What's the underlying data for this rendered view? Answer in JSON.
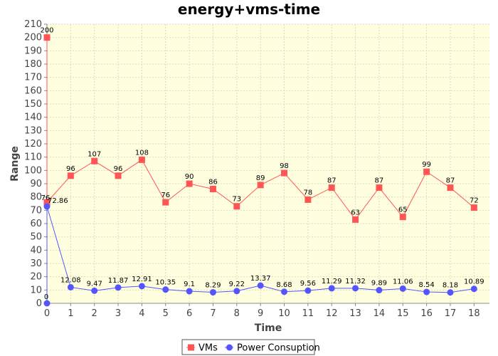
{
  "colors": {
    "plot_background": "#ffffe0",
    "grid": "#d9d9bf",
    "vms": "#ff5555",
    "power": "#5555ff",
    "axis": "#888888"
  },
  "chart_data": {
    "type": "line",
    "title": "energy+vms-time",
    "xlabel": "Time",
    "ylabel": "Range",
    "x": [
      0,
      1,
      2,
      3,
      4,
      5,
      6,
      7,
      8,
      9,
      10,
      11,
      12,
      13,
      14,
      15,
      16,
      17,
      18
    ],
    "xlim": [
      0,
      18.65
    ],
    "ylim": [
      0,
      210
    ],
    "yticks": [
      0,
      10,
      20,
      30,
      40,
      50,
      60,
      70,
      80,
      90,
      100,
      110,
      120,
      130,
      140,
      150,
      160,
      170,
      180,
      190,
      200,
      210
    ],
    "grid": true,
    "legend_position": "bottom-center",
    "series": [
      {
        "name": "VMs",
        "color": "#ff5555",
        "marker": "square",
        "points": [
          {
            "x": 0,
            "y": 200,
            "label": "200"
          },
          {
            "x": 0,
            "y": 76,
            "label": "76"
          },
          {
            "x": 1,
            "y": 96,
            "label": "96"
          },
          {
            "x": 2,
            "y": 107,
            "label": "107"
          },
          {
            "x": 3,
            "y": 96,
            "label": "96"
          },
          {
            "x": 4,
            "y": 108,
            "label": "108"
          },
          {
            "x": 5,
            "y": 76,
            "label": "76"
          },
          {
            "x": 6,
            "y": 90,
            "label": "90"
          },
          {
            "x": 7,
            "y": 86,
            "label": "86"
          },
          {
            "x": 8,
            "y": 73,
            "label": "73"
          },
          {
            "x": 9,
            "y": 89,
            "label": "89"
          },
          {
            "x": 10,
            "y": 98,
            "label": "98"
          },
          {
            "x": 11,
            "y": 78,
            "label": "78"
          },
          {
            "x": 12,
            "y": 87,
            "label": "87"
          },
          {
            "x": 13,
            "y": 63,
            "label": "63"
          },
          {
            "x": 14,
            "y": 87,
            "label": "87"
          },
          {
            "x": 15,
            "y": 65,
            "label": "65"
          },
          {
            "x": 16,
            "y": 99,
            "label": "99"
          },
          {
            "x": 17,
            "y": 87,
            "label": "87"
          },
          {
            "x": 18,
            "y": 72,
            "label": "72"
          }
        ]
      },
      {
        "name": "Power Consuption",
        "color": "#5555ff",
        "marker": "circle",
        "points": [
          {
            "x": 0,
            "y": 0,
            "label": "0"
          },
          {
            "x": 0,
            "y": 72.86,
            "label": "72.86"
          },
          {
            "x": 1,
            "y": 12.08,
            "label": "12.08"
          },
          {
            "x": 2,
            "y": 9.47,
            "label": "9.47"
          },
          {
            "x": 3,
            "y": 11.87,
            "label": "11.87"
          },
          {
            "x": 4,
            "y": 12.91,
            "label": "12.91"
          },
          {
            "x": 5,
            "y": 10.35,
            "label": "10.35"
          },
          {
            "x": 6,
            "y": 9.1,
            "label": "9.1"
          },
          {
            "x": 7,
            "y": 8.29,
            "label": "8.29"
          },
          {
            "x": 8,
            "y": 9.22,
            "label": "9.22"
          },
          {
            "x": 9,
            "y": 13.37,
            "label": "13.37"
          },
          {
            "x": 10,
            "y": 8.68,
            "label": "8.68"
          },
          {
            "x": 11,
            "y": 9.56,
            "label": "9.56"
          },
          {
            "x": 12,
            "y": 11.29,
            "label": "11.29"
          },
          {
            "x": 13,
            "y": 11.32,
            "label": "11.32"
          },
          {
            "x": 14,
            "y": 9.89,
            "label": "9.89"
          },
          {
            "x": 15,
            "y": 11.06,
            "label": "11.06"
          },
          {
            "x": 16,
            "y": 8.54,
            "label": "8.54"
          },
          {
            "x": 17,
            "y": 8.18,
            "label": "8.18"
          },
          {
            "x": 18,
            "y": 10.89,
            "label": "10.89"
          }
        ]
      }
    ]
  }
}
